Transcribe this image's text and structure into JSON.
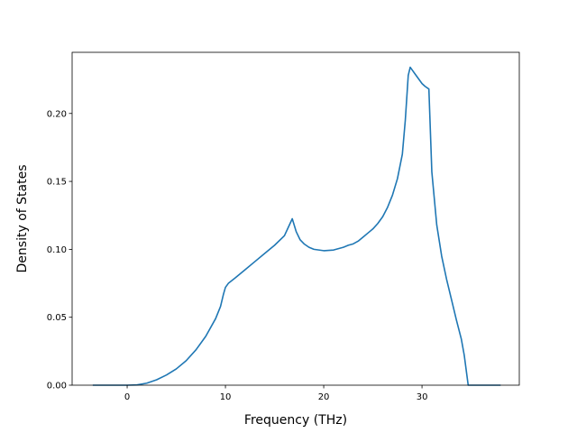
{
  "chart_data": {
    "type": "line",
    "title": "",
    "xlabel": "Frequency (THz)",
    "ylabel": "Density of States",
    "xlim": [
      -5.6,
      39.9
    ],
    "ylim": [
      0.0,
      0.245
    ],
    "x_ticks": [
      0,
      10,
      20,
      30
    ],
    "y_ticks": [
      0.0,
      0.05,
      0.1,
      0.15,
      0.2
    ],
    "x_tick_labels": [
      "0",
      "10",
      "20",
      "30"
    ],
    "y_tick_labels": [
      "0.00",
      "0.05",
      "0.10",
      "0.15",
      "0.20"
    ],
    "grid": false,
    "legend": "none",
    "series_color": "#1f77b4",
    "series": [
      {
        "x": [
          -3.5,
          0.0,
          1.0,
          2.0,
          3.0,
          4.0,
          5.0,
          6.0,
          7.0,
          8.0,
          9.0,
          9.5,
          9.8,
          10.0,
          10.3,
          11.0,
          12.0,
          13.0,
          14.0,
          15.0,
          16.0,
          16.8,
          17.2,
          17.6,
          18.0,
          18.5,
          19.0,
          20.0,
          21.0,
          22.0,
          22.5,
          23.0,
          23.5,
          24.0,
          24.5,
          25.0,
          25.5,
          26.0,
          26.5,
          27.0,
          27.5,
          28.0,
          28.3,
          28.6,
          28.8,
          29.0,
          29.3,
          29.6,
          30.0,
          30.3,
          30.7,
          31.0,
          31.5,
          32.0,
          32.5,
          33.0,
          33.5,
          34.0,
          34.3,
          34.7,
          36.0,
          38.0
        ],
        "y": [
          0.0,
          0.0,
          0.0002,
          0.0015,
          0.004,
          0.0075,
          0.012,
          0.018,
          0.026,
          0.036,
          0.049,
          0.058,
          0.067,
          0.072,
          0.075,
          0.079,
          0.085,
          0.091,
          0.097,
          0.103,
          0.11,
          0.1225,
          0.113,
          0.107,
          0.104,
          0.1015,
          0.1,
          0.099,
          0.0995,
          0.1015,
          0.103,
          0.104,
          0.106,
          0.109,
          0.112,
          0.115,
          0.119,
          0.124,
          0.131,
          0.14,
          0.152,
          0.17,
          0.195,
          0.228,
          0.234,
          0.232,
          0.229,
          0.226,
          0.222,
          0.22,
          0.218,
          0.157,
          0.118,
          0.095,
          0.078,
          0.063,
          0.048,
          0.034,
          0.022,
          0.0,
          0.0,
          0.0
        ]
      }
    ]
  }
}
